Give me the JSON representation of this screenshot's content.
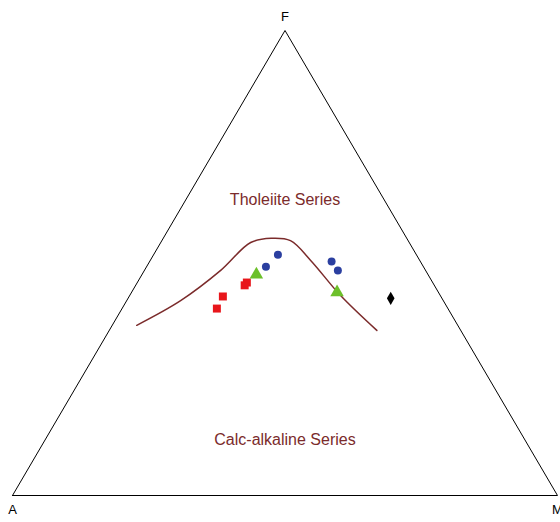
{
  "chart_data": {
    "type": "ternary",
    "axes": [
      "A",
      "F",
      "M"
    ],
    "tick_labels": false,
    "regions": [
      "Tholeiite Series",
      "Calc-alkaline Series"
    ],
    "boundary": {
      "type": "line",
      "color": "#7b2b2b",
      "points": [
        [
          58.9,
          36.6,
          4.5
        ],
        [
          48.2,
          41.9,
          9.9
        ],
        [
          37.6,
          48.4,
          14.0
        ],
        [
          29.1,
          54.4,
          16.5
        ],
        [
          24.9,
          55.3,
          19.8
        ],
        [
          21.6,
          54.8,
          23.6
        ],
        [
          20.0,
          50.5,
          29.5
        ],
        [
          18.3,
          43.0,
          38.7
        ],
        [
          15.4,
          35.5,
          49.1
        ]
      ]
    },
    "series": [
      {
        "color": "#e8161b",
        "marker": "square",
        "points": [
          [
            42.4,
            40.2,
            17.4
          ],
          [
            40.0,
            42.8,
            17.2
          ],
          [
            34.8,
            45.2,
            20.0
          ],
          [
            34.1,
            45.8,
            20.1
          ]
        ]
      },
      {
        "color": "#6cc02a",
        "marker": "triangle",
        "points": [
          [
            31.5,
            47.5,
            21.0
          ],
          [
            18.6,
            43.7,
            37.7
          ]
        ]
      },
      {
        "color": "#2b3fa0",
        "marker": "circle",
        "points": [
          [
            28.9,
            49.2,
            21.9
          ],
          [
            25.4,
            51.8,
            22.8
          ],
          [
            16.3,
            50.3,
            33.4
          ],
          [
            16.1,
            48.4,
            35.5
          ]
        ]
      },
      {
        "color": "#000000",
        "marker": "diamond",
        "points": [
          [
            9.4,
            42.4,
            48.2
          ]
        ]
      }
    ]
  }
}
